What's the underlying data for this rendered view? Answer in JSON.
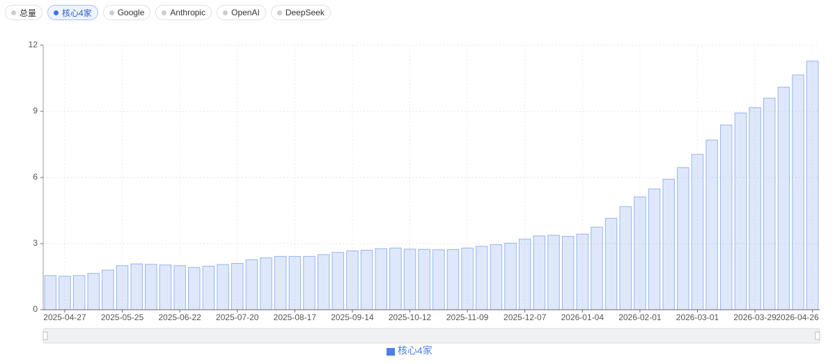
{
  "filters": [
    "总量",
    "核心4家",
    "Google",
    "Anthropic",
    "OpenAI",
    "DeepSeek"
  ],
  "chart_data": {
    "type": "bar",
    "categories": [
      null,
      "2025-04-27",
      null,
      null,
      null,
      "2025-05-25",
      null,
      null,
      null,
      "2025-06-22",
      null,
      null,
      null,
      "2025-07-20",
      null,
      null,
      null,
      "2025-08-17",
      null,
      null,
      null,
      "2025-09-14",
      null,
      null,
      null,
      "2025-10-12",
      null,
      null,
      null,
      "2025-11-09",
      null,
      null,
      null,
      "2025-12-07",
      null,
      null,
      null,
      "2026-01-04",
      null,
      null,
      null,
      "2026-02-01",
      null,
      null,
      null,
      "2026-03-01",
      null,
      null,
      null,
      "2026-03-29",
      null,
      null,
      null,
      "2026-04-26"
    ],
    "series": [
      {
        "name": "核心4家",
        "color": "#4f7fe6",
        "values": [
          1.55,
          1.52,
          1.55,
          1.65,
          1.8,
          2.0,
          2.08,
          2.06,
          2.03,
          2.0,
          1.92,
          1.98,
          2.05,
          2.1,
          2.27,
          2.35,
          2.42,
          2.42,
          2.42,
          2.5,
          2.6,
          2.67,
          2.7,
          2.77,
          2.8,
          2.75,
          2.74,
          2.72,
          2.73,
          2.8,
          2.88,
          2.95,
          3.02,
          3.2,
          3.35,
          3.38,
          3.33,
          3.43,
          3.75,
          4.15,
          4.68,
          5.12,
          5.48,
          5.92,
          6.45,
          7.05,
          7.7,
          8.38,
          8.93,
          9.17,
          9.6,
          10.1,
          10.65,
          11.28
        ]
      }
    ],
    "ylim": [
      0,
      12
    ],
    "yticks": [
      0,
      3,
      6,
      9,
      12
    ],
    "grid": true
  }
}
